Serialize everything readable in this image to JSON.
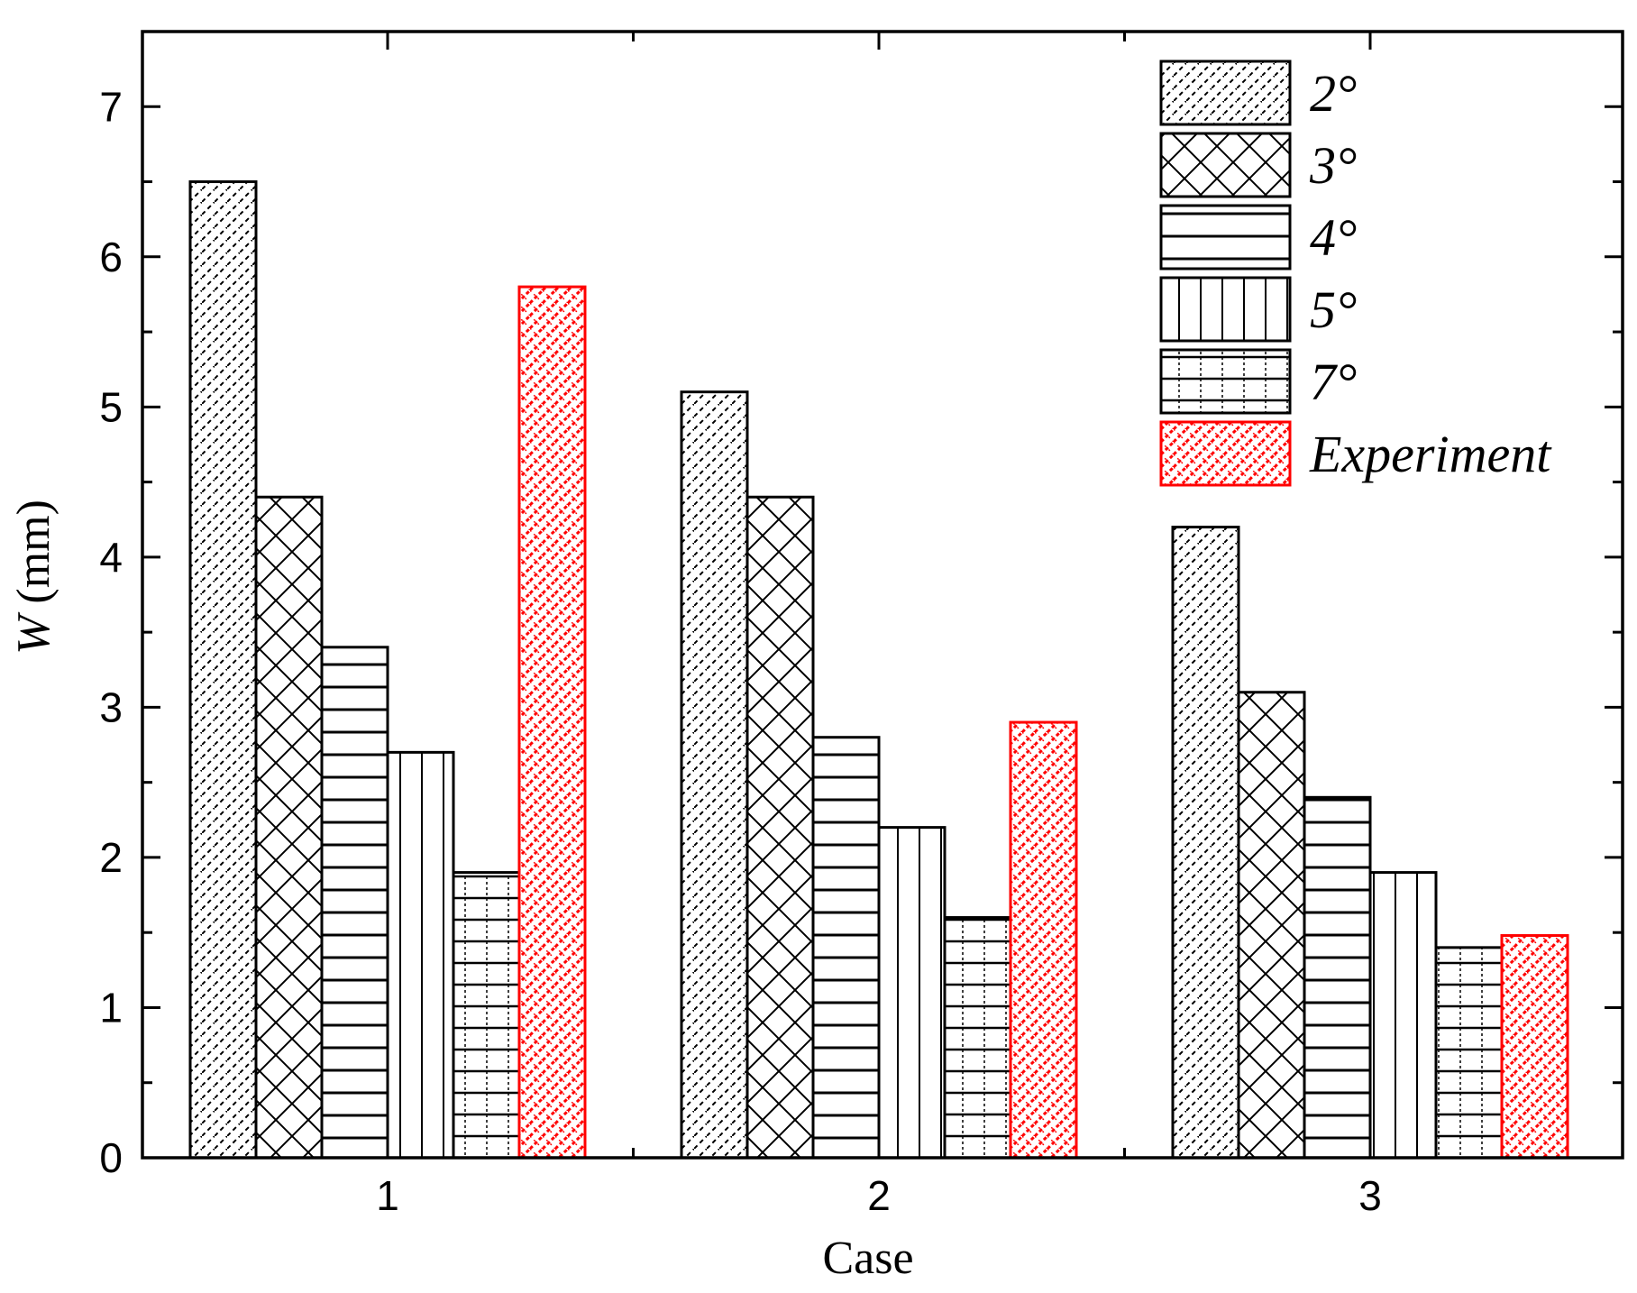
{
  "chart_data": {
    "type": "bar",
    "title": "",
    "xlabel": "Case",
    "ylabel_var": "W",
    "ylabel_unit": " (mm)",
    "categories": [
      "1",
      "2",
      "3"
    ],
    "series": [
      {
        "name": "2°",
        "values": [
          6.5,
          5.1,
          4.2
        ],
        "color": "#000000",
        "pattern": "dashdiag"
      },
      {
        "name": "3°",
        "values": [
          4.4,
          4.4,
          3.1
        ],
        "color": "#000000",
        "pattern": "crosshatch"
      },
      {
        "name": "4°",
        "values": [
          3.4,
          2.8,
          2.4
        ],
        "color": "#000000",
        "pattern": "hlines"
      },
      {
        "name": "5°",
        "values": [
          2.7,
          2.2,
          1.9
        ],
        "color": "#000000",
        "pattern": "vlines"
      },
      {
        "name": "7°",
        "values": [
          1.9,
          1.6,
          1.4
        ],
        "color": "#000000",
        "pattern": "grid"
      },
      {
        "name": "Experiment",
        "values": [
          5.8,
          2.9,
          1.48
        ],
        "color": "#ff0000",
        "pattern": "redweave"
      }
    ],
    "yticks": [
      0,
      1,
      2,
      3,
      4,
      5,
      6,
      7
    ],
    "ylim": [
      0,
      7.5
    ],
    "grid": false,
    "legend_position": "top-right"
  }
}
